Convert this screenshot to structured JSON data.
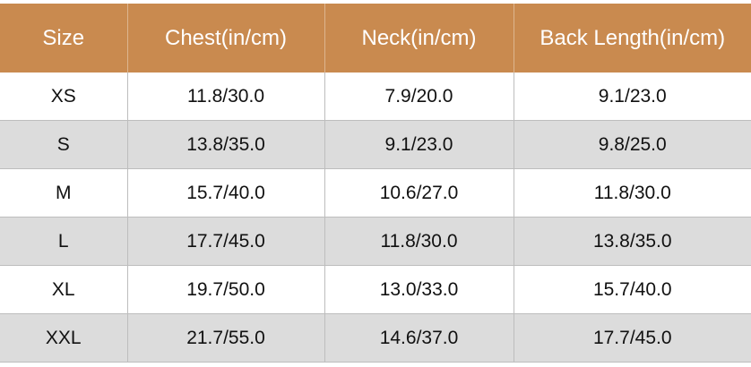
{
  "table": {
    "header": [
      "Size",
      "Chest(in/cm)",
      "Neck(in/cm)",
      "Back Length(in/cm)"
    ],
    "rows": [
      [
        "XS",
        "11.8/30.0",
        "7.9/20.0",
        "9.1/23.0"
      ],
      [
        "S",
        "13.8/35.0",
        "9.1/23.0",
        "9.8/25.0"
      ],
      [
        "M",
        "15.7/40.0",
        "10.6/27.0",
        "11.8/30.0"
      ],
      [
        "L",
        "17.7/45.0",
        "11.8/30.0",
        "13.8/35.0"
      ],
      [
        "XL",
        "19.7/50.0",
        "13.0/33.0",
        "15.7/40.0"
      ],
      [
        "XXL",
        "21.7/55.0",
        "14.6/37.0",
        "17.7/45.0"
      ]
    ]
  }
}
